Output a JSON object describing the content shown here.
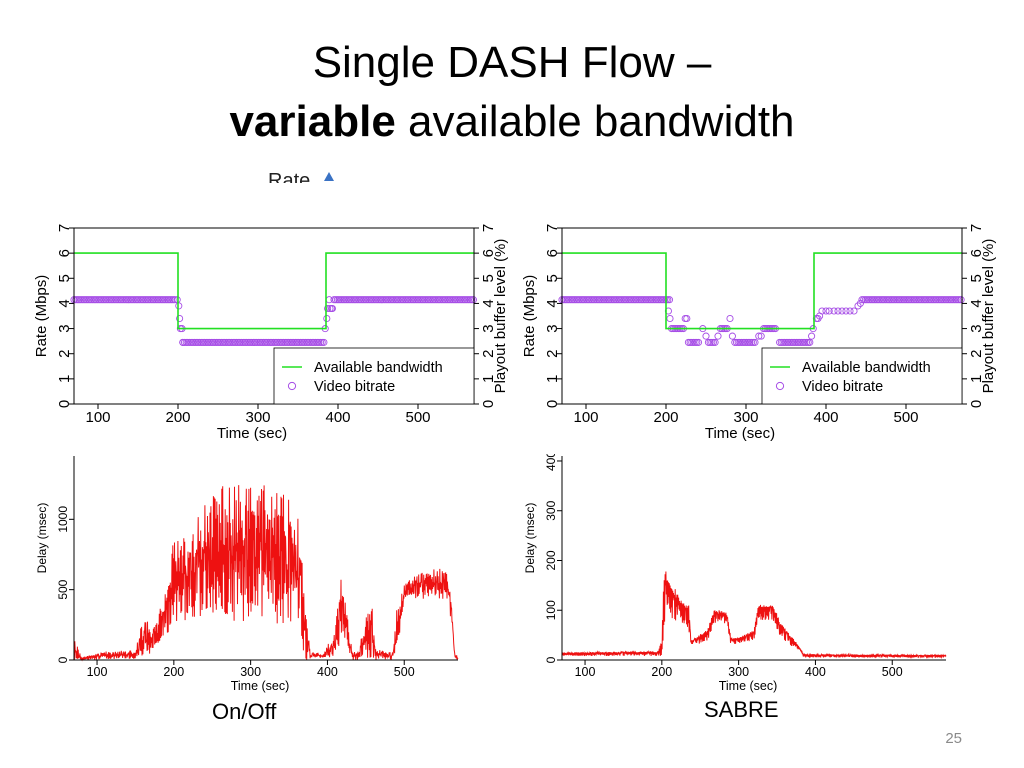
{
  "slide": {
    "title_line1": "Single DASH Flow –",
    "title_line2_bold": "variable",
    "title_line2_rest": " available bandwidth",
    "partial_text": "Rate",
    "caption_left": "On/Off",
    "caption_right": "SABRE",
    "page_number": "25"
  },
  "colors": {
    "bandwidth": "#22e022",
    "bitrate": "#a64de6",
    "delay": "#ee1111"
  },
  "chart_data": [
    {
      "id": "rate-onoff",
      "type": "line",
      "xlabel": "Time (sec)",
      "ylabel": "Rate (Mbps)",
      "y2label": "Playout buffer level (%)",
      "xlim": [
        70,
        570
      ],
      "ylim": [
        0,
        7
      ],
      "xticks": [
        100,
        200,
        300,
        400,
        500
      ],
      "yticks": [
        0,
        1,
        2,
        3,
        4,
        5,
        6,
        7
      ],
      "legend_position": "bottom-right",
      "series": [
        {
          "name": "Available bandwidth",
          "kind": "step",
          "points": [
            [
              70,
              6
            ],
            [
              200,
              6
            ],
            [
              200,
              3
            ],
            [
              385,
              3
            ],
            [
              385,
              6
            ],
            [
              570,
              6
            ]
          ]
        },
        {
          "name": "Video bitrate",
          "kind": "markers",
          "segments": [
            [
              70,
              198,
              4.15
            ],
            [
              206,
              384,
              2.45
            ],
            [
              395,
              570,
              4.15
            ]
          ],
          "points": [
            [
              199,
              4.15
            ],
            [
              201,
              3.9
            ],
            [
              202,
              3.4
            ],
            [
              203,
              3.0
            ],
            [
              205,
              3.0
            ],
            [
              206,
              2.45
            ],
            [
              384,
              3.0
            ],
            [
              386,
              3.4
            ],
            [
              387,
              3.8
            ],
            [
              389,
              4.15
            ],
            [
              390,
              3.8
            ],
            [
              392,
              3.8
            ],
            [
              393,
              3.8
            ]
          ]
        }
      ]
    },
    {
      "id": "rate-sabre",
      "type": "line",
      "xlabel": "Time (sec)",
      "ylabel": "Rate (Mbps)",
      "y2label": "Playout buffer level (%)",
      "xlim": [
        70,
        570
      ],
      "ylim": [
        0,
        7
      ],
      "xticks": [
        100,
        200,
        300,
        400,
        500
      ],
      "yticks": [
        0,
        1,
        2,
        3,
        4,
        5,
        6,
        7
      ],
      "legend_position": "bottom-right",
      "series": [
        {
          "name": "Available bandwidth",
          "kind": "step",
          "points": [
            [
              70,
              6
            ],
            [
              200,
              6
            ],
            [
              200,
              3
            ],
            [
              385,
              3
            ],
            [
              385,
              6
            ],
            [
              570,
              6
            ]
          ]
        },
        {
          "name": "Video bitrate",
          "kind": "markers",
          "segments": [
            [
              70,
              205,
              4.15
            ],
            [
              207,
              222,
              3.0
            ],
            [
              228,
              242,
              2.45
            ],
            [
              253,
              262,
              2.45
            ],
            [
              268,
              278,
              3.0
            ],
            [
              286,
              312,
              2.45
            ],
            [
              322,
              337,
              3.0
            ],
            [
              342,
              380,
              2.45
            ],
            [
              445,
              570,
              4.15
            ]
          ],
          "points": [
            [
              203,
              3.7
            ],
            [
              205,
              3.4
            ],
            [
              224,
              3.4
            ],
            [
              226,
              3.4
            ],
            [
              246,
              3.0
            ],
            [
              250,
              2.7
            ],
            [
              265,
              2.7
            ],
            [
              280,
              3.4
            ],
            [
              283,
              2.7
            ],
            [
              316,
              2.7
            ],
            [
              319,
              2.7
            ],
            [
              382,
              2.7
            ],
            [
              384,
              3.0
            ],
            [
              388,
              3.4
            ],
            [
              390,
              3.4
            ],
            [
              392,
              3.5
            ],
            [
              395,
              3.7
            ],
            [
              400,
              3.7
            ],
            [
              404,
              3.7
            ],
            [
              410,
              3.7
            ],
            [
              415,
              3.7
            ],
            [
              420,
              3.7
            ],
            [
              425,
              3.7
            ],
            [
              430,
              3.7
            ],
            [
              435,
              3.7
            ],
            [
              440,
              3.9
            ],
            [
              443,
              4.0
            ]
          ]
        }
      ]
    },
    {
      "id": "delay-onoff",
      "type": "line",
      "xlabel": "Time (sec)",
      "ylabel": "Delay (msec)",
      "xlim": [
        70,
        570
      ],
      "ylim": [
        0,
        1450
      ],
      "xticks": [
        100,
        200,
        300,
        400,
        500
      ],
      "yticks": [
        0,
        500,
        1000
      ],
      "series": [
        {
          "name": "",
          "profile": [
            [
              70,
              150
            ],
            [
              75,
              90
            ],
            [
              80,
              20
            ],
            [
              110,
              60
            ],
            [
              150,
              70
            ],
            [
              160,
              300
            ],
            [
              175,
              250
            ],
            [
              190,
              500
            ],
            [
              200,
              880
            ],
            [
              240,
              1100
            ],
            [
              265,
              1250
            ],
            [
              290,
              1250
            ],
            [
              320,
              1250
            ],
            [
              350,
              1150
            ],
            [
              365,
              980
            ],
            [
              370,
              400
            ],
            [
              378,
              60
            ],
            [
              395,
              40
            ],
            [
              410,
              230
            ],
            [
              418,
              600
            ],
            [
              425,
              400
            ],
            [
              432,
              60
            ],
            [
              440,
              60
            ],
            [
              450,
              320
            ],
            [
              458,
              420
            ],
            [
              462,
              80
            ],
            [
              475,
              60
            ],
            [
              485,
              60
            ],
            [
              490,
              350
            ],
            [
              500,
              550
            ],
            [
              520,
              620
            ],
            [
              540,
              650
            ],
            [
              555,
              650
            ],
            [
              562,
              420
            ],
            [
              566,
              60
            ],
            [
              570,
              20
            ]
          ],
          "floor_profile": [
            [
              70,
              0
            ],
            [
              160,
              10
            ],
            [
              175,
              60
            ],
            [
              200,
              200
            ],
            [
              260,
              280
            ],
            [
              320,
              260
            ],
            [
              365,
              200
            ],
            [
              370,
              0
            ],
            [
              410,
              20
            ],
            [
              420,
              180
            ],
            [
              430,
              0
            ],
            [
              490,
              0
            ],
            [
              500,
              430
            ],
            [
              555,
              430
            ],
            [
              560,
              300
            ],
            [
              565,
              0
            ],
            [
              570,
              0
            ]
          ],
          "noise": 0.55
        }
      ]
    },
    {
      "id": "delay-sabre",
      "type": "line",
      "xlabel": "Time (sec)",
      "ylabel": "Delay (msec)",
      "xlim": [
        70,
        570
      ],
      "ylim": [
        0,
        410
      ],
      "xticks": [
        100,
        200,
        300,
        400,
        500
      ],
      "yticks": [
        0,
        100,
        200,
        300,
        400
      ],
      "series": [
        {
          "name": "",
          "profile": [
            [
              70,
              15
            ],
            [
              195,
              18
            ],
            [
              200,
              40
            ],
            [
              202,
              150
            ],
            [
              205,
              185
            ],
            [
              215,
              150
            ],
            [
              225,
              125
            ],
            [
              235,
              110
            ],
            [
              238,
              40
            ],
            [
              245,
              45
            ],
            [
              260,
              65
            ],
            [
              268,
              100
            ],
            [
              275,
              100
            ],
            [
              285,
              95
            ],
            [
              290,
              45
            ],
            [
              300,
              45
            ],
            [
              320,
              60
            ],
            [
              325,
              110
            ],
            [
              335,
              115
            ],
            [
              345,
              110
            ],
            [
              355,
              75
            ],
            [
              370,
              45
            ],
            [
              378,
              30
            ],
            [
              385,
              12
            ],
            [
              570,
              10
            ]
          ],
          "floor_profile": [
            [
              70,
              8
            ],
            [
              200,
              8
            ],
            [
              205,
              100
            ],
            [
              215,
              80
            ],
            [
              225,
              75
            ],
            [
              235,
              60
            ],
            [
              238,
              30
            ],
            [
              260,
              35
            ],
            [
              268,
              70
            ],
            [
              285,
              70
            ],
            [
              290,
              30
            ],
            [
              320,
              40
            ],
            [
              325,
              80
            ],
            [
              345,
              80
            ],
            [
              355,
              40
            ],
            [
              378,
              20
            ],
            [
              385,
              5
            ],
            [
              570,
              5
            ]
          ],
          "noise": 0.25
        }
      ]
    }
  ]
}
